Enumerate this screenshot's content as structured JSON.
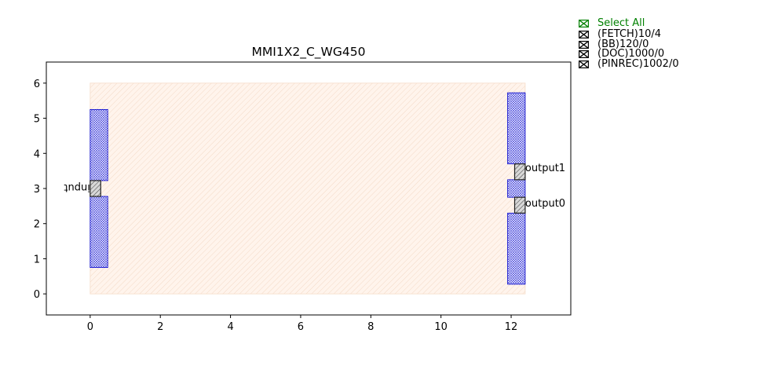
{
  "chart_data": {
    "type": "layout",
    "title": "MMI1X2_C_WG450",
    "xlim": [
      -1.25,
      13.7
    ],
    "ylim": [
      -0.6,
      6.6
    ],
    "xticks": [
      0,
      2,
      4,
      6,
      8,
      10,
      12
    ],
    "yticks": [
      0,
      1,
      2,
      3,
      4,
      5,
      6
    ],
    "grid": false,
    "colors": {
      "fetch_fill": "#fff4ec",
      "fetch_edge": "#f6dcc8",
      "bb_edge": "#0000cc",
      "pin_edge": "#222222",
      "pin_fill": "#d8d8d8",
      "axes": "#000000"
    },
    "fetch_rect": {
      "x0": 0,
      "y0": 0,
      "x1": 12.4,
      "y1": 6
    },
    "bb_rects": [
      {
        "x0": 0,
        "y0": 0.75,
        "x1": 0.5,
        "y1": 2.775
      },
      {
        "x0": 0,
        "y0": 3.225,
        "x1": 0.5,
        "y1": 5.25
      },
      {
        "x0": 11.9,
        "y0": 0.275,
        "x1": 12.4,
        "y1": 2.3
      },
      {
        "x0": 11.9,
        "y0": 2.75,
        "x1": 12.4,
        "y1": 3.25
      },
      {
        "x0": 11.9,
        "y0": 3.7,
        "x1": 12.4,
        "y1": 5.725
      }
    ],
    "pins": [
      {
        "name": "input",
        "x0": 0,
        "y0": 2.775,
        "x1": 0.3,
        "y1": 3.225,
        "label_x": 0,
        "label_y": 3.0,
        "side": "left"
      },
      {
        "name": "output0",
        "x0": 12.1,
        "y0": 2.3,
        "x1": 12.4,
        "y1": 2.75,
        "label_x": 12.4,
        "label_y": 2.6,
        "side": "right"
      },
      {
        "name": "output1",
        "x0": 12.1,
        "y0": 3.25,
        "x1": 12.4,
        "y1": 3.7,
        "label_x": 12.4,
        "label_y": 3.6,
        "side": "right"
      }
    ]
  },
  "legend": {
    "select_all": "Select All",
    "items": [
      {
        "label": "(FETCH)10/4"
      },
      {
        "label": "(BB)120/0"
      },
      {
        "label": "(DOC)1000/0"
      },
      {
        "label": "(PINREC)1002/0"
      }
    ]
  }
}
